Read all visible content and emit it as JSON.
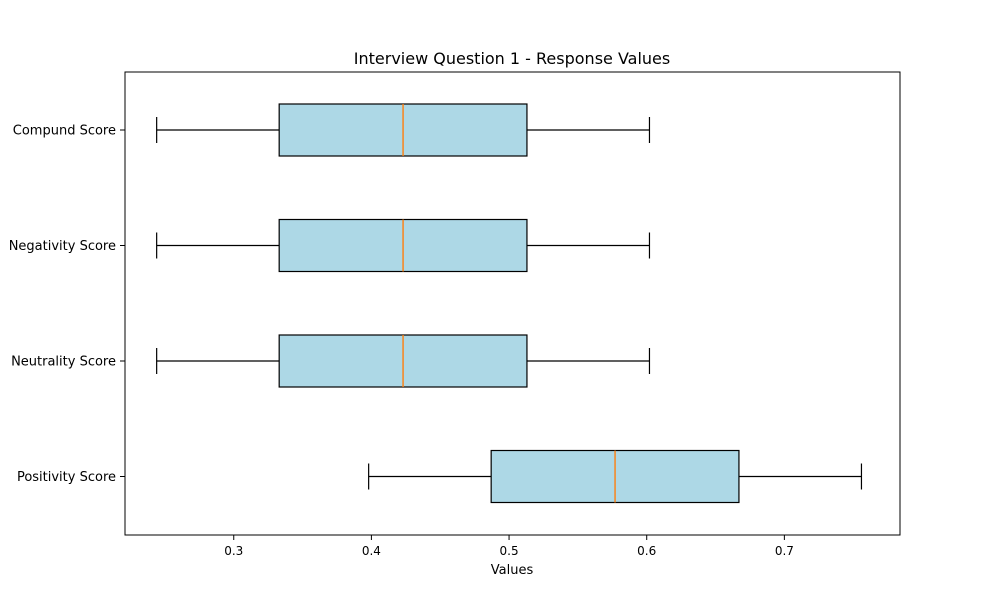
{
  "chart_data": {
    "type": "boxplot",
    "orientation": "horizontal",
    "title": "Interview Question 1 - Response Values",
    "xlabel": "Values",
    "ylabel": "",
    "xlim": [
      0.221,
      0.784
    ],
    "xticks": [
      "0.3",
      "0.4",
      "0.5",
      "0.6",
      "0.7"
    ],
    "grid": false,
    "box_fill": "#add8e6",
    "median_color": "#ff7f0e",
    "categories": [
      "Positivity Score",
      "Neutrality Score",
      "Negativity Score",
      "Compund Score"
    ],
    "series": [
      {
        "name": "Positivity Score",
        "whisker_low": 0.398,
        "q1": 0.487,
        "median": 0.577,
        "q3": 0.667,
        "whisker_high": 0.756
      },
      {
        "name": "Neutrality Score",
        "whisker_low": 0.244,
        "q1": 0.333,
        "median": 0.423,
        "q3": 0.513,
        "whisker_high": 0.602
      },
      {
        "name": "Negativity Score",
        "whisker_low": 0.244,
        "q1": 0.333,
        "median": 0.423,
        "q3": 0.513,
        "whisker_high": 0.602
      },
      {
        "name": "Compund Score",
        "whisker_low": 0.244,
        "q1": 0.333,
        "median": 0.423,
        "q3": 0.513,
        "whisker_high": 0.602
      }
    ]
  }
}
